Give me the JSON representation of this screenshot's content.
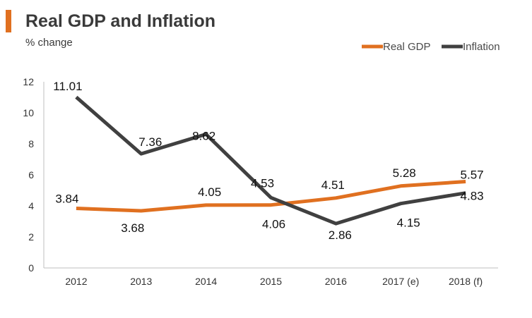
{
  "header": {
    "title": "Real GDP and Inflation",
    "subtitle": "% change"
  },
  "colors": {
    "accent": "#e07020",
    "real_gdp": "#e07020",
    "inflation": "#404040",
    "axis": "#bfbfbf"
  },
  "chart_data": {
    "type": "line",
    "title": "Real GDP and Inflation",
    "subtitle": "% change",
    "xlabel": "",
    "ylabel": "",
    "categories": [
      "2012",
      "2013",
      "2014",
      "2015",
      "2016",
      "2017 (e)",
      "2018 (f)"
    ],
    "ylim": [
      0,
      12
    ],
    "yticks": [
      0,
      2,
      4,
      6,
      8,
      10,
      12
    ],
    "grid": false,
    "legend": "top-right",
    "series": [
      {
        "name": "Real GDP",
        "values": [
          3.84,
          3.68,
          4.05,
          4.06,
          4.51,
          5.28,
          5.57
        ],
        "labels": [
          "3.84",
          "3.68",
          "4.05",
          "4.06",
          "4.51",
          "5.28",
          "5.57"
        ]
      },
      {
        "name": "Inflation",
        "values": [
          11.01,
          7.36,
          8.62,
          4.53,
          2.86,
          4.15,
          4.83
        ],
        "labels": [
          "11.01",
          "7.36",
          "8.62",
          "4.53",
          "2.86",
          "4.15",
          "4.83"
        ]
      }
    ]
  }
}
